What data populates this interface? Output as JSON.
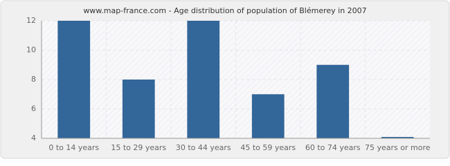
{
  "chart_data": {
    "type": "bar",
    "title": "www.map-france.com - Age distribution of population of Blémerey in 2007",
    "categories": [
      "0 to 14 years",
      "15 to 29 years",
      "30 to 44 years",
      "45 to 59 years",
      "60 to 74 years",
      "75 years or more"
    ],
    "values": [
      12,
      8,
      12,
      7,
      9,
      4
    ],
    "color": "#336699",
    "ylim": [
      4,
      12
    ],
    "yticks": [
      4,
      6,
      8,
      10,
      12
    ],
    "grid": true
  }
}
